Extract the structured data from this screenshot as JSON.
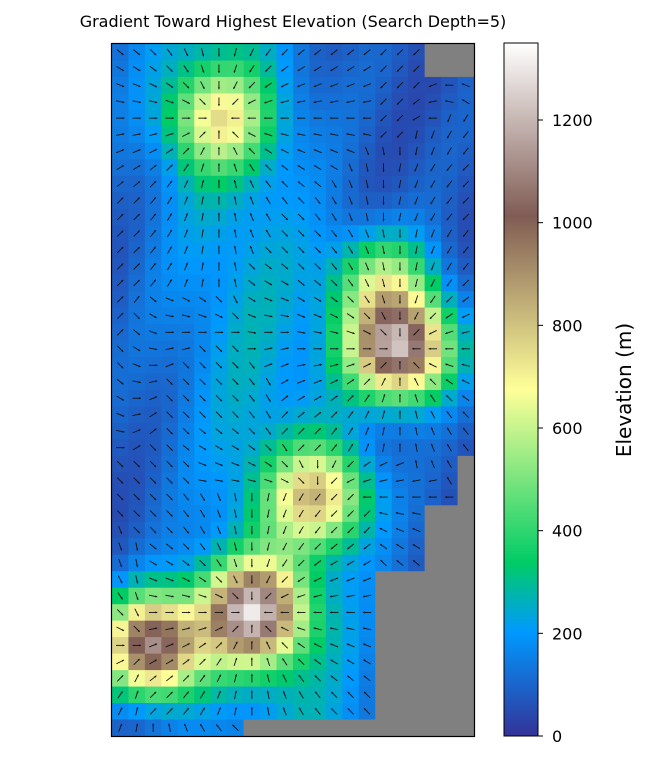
{
  "chart_data": {
    "type": "heatmap",
    "title": "Gradient Toward Highest Elevation (Search Depth=5)",
    "colorbar_label": "Elevation (m)",
    "colorbar_range": [
      0,
      1350
    ],
    "colorbar_ticks": [
      0,
      200,
      400,
      600,
      800,
      1000,
      1200
    ],
    "colormap": "terrain",
    "nodata_color": "#808080",
    "grid": {
      "cols": 22,
      "rows": 42
    },
    "peaks": [
      {
        "col": 17,
        "row": 18,
        "elevation": 1340
      },
      {
        "col": 8,
        "row": 34,
        "elevation": 1300
      },
      {
        "col": 2,
        "row": 36,
        "elevation": 1280
      },
      {
        "col": 6,
        "row": 4,
        "elevation": 740
      },
      {
        "col": 12,
        "row": 27,
        "elevation": 870
      },
      {
        "col": 16,
        "row": 14,
        "elevation": 700
      }
    ],
    "arrows": "unit vectors pointing toward the highest cell within a 5-cell search radius"
  }
}
